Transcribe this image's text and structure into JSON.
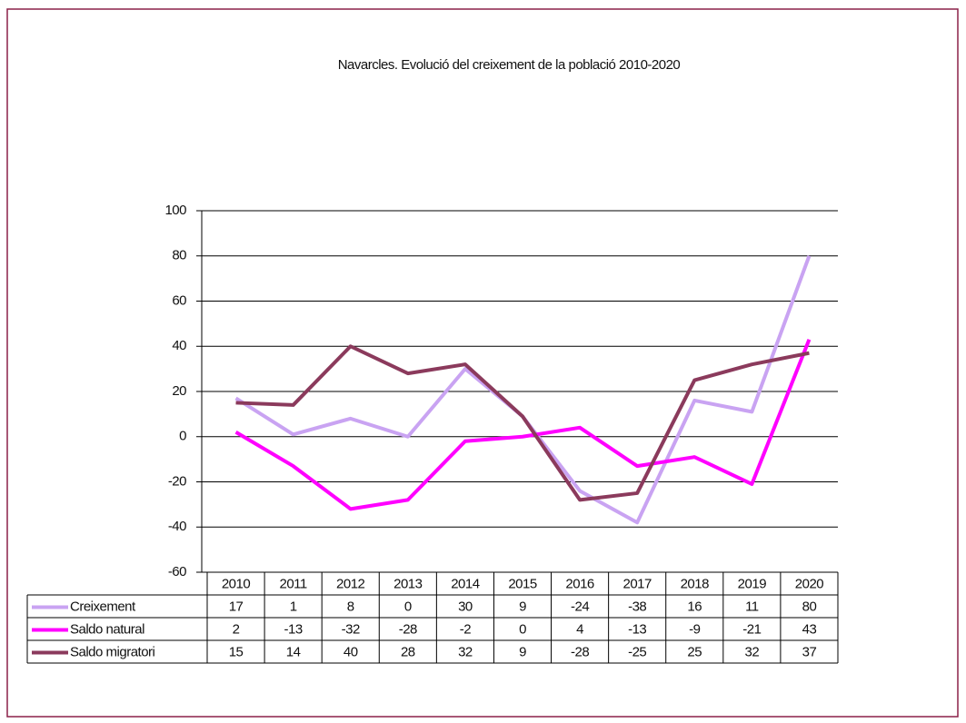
{
  "chart_data": {
    "type": "line",
    "title": "Navarcles. Evolució del creixement de la població 2010-2020",
    "categories": [
      "2010",
      "2011",
      "2012",
      "2013",
      "2014",
      "2015",
      "2016",
      "2017",
      "2018",
      "2019",
      "2020"
    ],
    "series": [
      {
        "name": "Creixement",
        "color": "#c9a3f2",
        "values": [
          17,
          1,
          8,
          0,
          30,
          9,
          -24,
          -38,
          16,
          11,
          80
        ]
      },
      {
        "name": "Saldo natural",
        "color": "#ff00ff",
        "values": [
          2,
          -13,
          -32,
          -28,
          -2,
          0,
          4,
          -13,
          -9,
          -21,
          43
        ]
      },
      {
        "name": "Saldo migratori",
        "color": "#8b3a5c",
        "values": [
          15,
          14,
          40,
          28,
          32,
          9,
          -28,
          -25,
          25,
          32,
          37
        ]
      }
    ],
    "ylim": [
      -60,
      100
    ],
    "yticks": [
      -60,
      -40,
      -20,
      0,
      20,
      40,
      60,
      80,
      100
    ],
    "grid": true
  }
}
